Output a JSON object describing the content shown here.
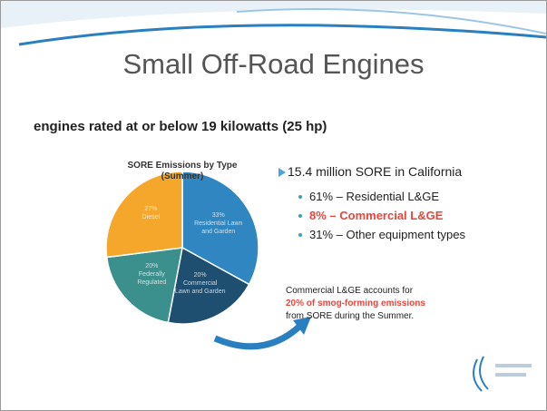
{
  "slide": {
    "title": "Small Off-Road Engines",
    "subtitle": "engines rated at or below 19 kilowatts (25 hp)",
    "bullet": "15.4 million SORE in California",
    "sub_bullets": [
      "61% – Residential L&GE",
      "8% – Commercial L&GE",
      "31% – Other equipment types"
    ],
    "note": [
      "Commercial L&GE accounts for",
      "20% of smog-forming emissions",
      "from SORE during the Summer."
    ]
  },
  "chart_data": {
    "type": "pie",
    "title": "SORE Emissions by Type",
    "subtitle": "(Summer)",
    "categories": [
      "Residential Lawn and Garden",
      "Commercial Lawn and Garden",
      "Federally Regulated",
      "Diesel"
    ],
    "values": [
      33,
      20,
      20,
      27
    ],
    "value_labels": [
      "33%",
      "20%",
      "20%",
      "27%"
    ],
    "colors": [
      "#2f86c0",
      "#1f4f70",
      "#3b8f8c",
      "#f4a72a"
    ]
  }
}
